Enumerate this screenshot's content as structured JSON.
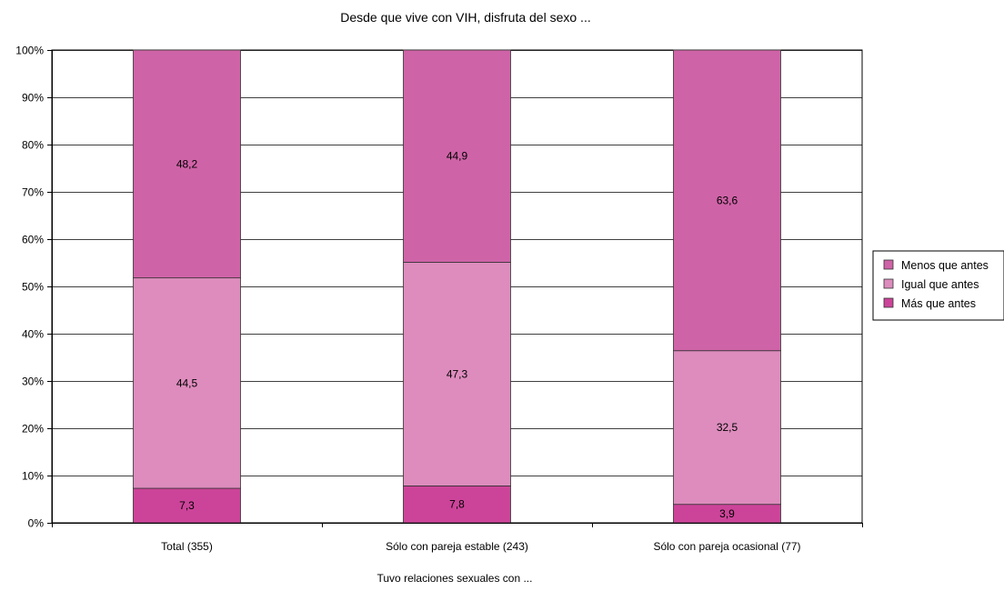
{
  "chart_data": {
    "type": "bar",
    "stacked": true,
    "percent_stacked": true,
    "title": "Desde que vive con VIH, disfruta del sexo ...",
    "xlabel": "Tuvo relaciones sexuales con ...",
    "ylabel": "",
    "ylim": [
      0,
      100
    ],
    "yticks": [
      "0%",
      "10%",
      "20%",
      "30%",
      "40%",
      "50%",
      "60%",
      "70%",
      "80%",
      "90%",
      "100%"
    ],
    "grid": true,
    "legend_position": "right",
    "categories": [
      "Total (355)",
      "Sólo con pareja estable (243)",
      "Sólo con pareja ocasional (77)"
    ],
    "series": [
      {
        "name": "Más que antes",
        "values": [
          7.3,
          7.8,
          3.9
        ],
        "labels": [
          "7,3",
          "7,8",
          "3,9"
        ],
        "color": "#cc4499"
      },
      {
        "name": "Igual que antes",
        "values": [
          44.5,
          47.3,
          32.5
        ],
        "labels": [
          "44,5",
          "47,3",
          "32,5"
        ],
        "color": "#dd8cbd"
      },
      {
        "name": "Menos que antes",
        "values": [
          48.2,
          44.9,
          63.6
        ],
        "labels": [
          "48,2",
          "44,9",
          "63,6"
        ],
        "color": "#cf63a7"
      }
    ],
    "legend_order": [
      "Menos que antes",
      "Igual que antes",
      "Más que antes"
    ]
  }
}
